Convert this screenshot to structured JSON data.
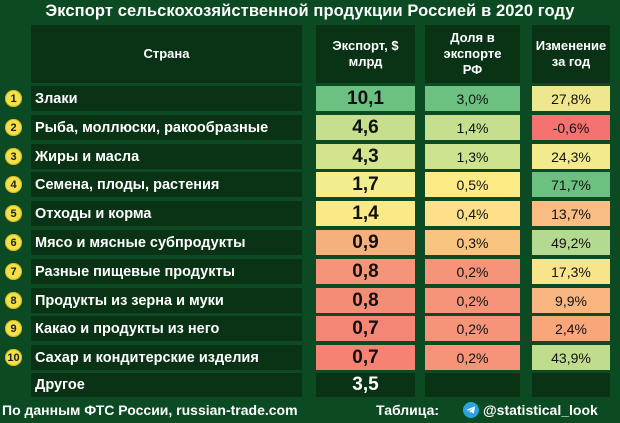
{
  "title": "Экспорт сельскохозяйственной продукции Россией в 2020 году",
  "headers": {
    "country": "Страна",
    "export": "Экспорт, $ млрд",
    "share": "Доля в экспорте РФ",
    "change": "Изменение за год"
  },
  "chart_data": {
    "type": "table",
    "columns": [
      "Страна",
      "Экспорт, $ млрд",
      "Доля в экспорте РФ",
      "Изменение за год"
    ],
    "rows": [
      {
        "rank": "1",
        "name": "Злаки",
        "export": "10,1",
        "share": "3,0%",
        "change": "27,8%"
      },
      {
        "rank": "2",
        "name": "Рыба, моллюски, ракообразные",
        "export": "4,6",
        "share": "1,4%",
        "change": "-0,6%"
      },
      {
        "rank": "3",
        "name": "Жиры и масла",
        "export": "4,3",
        "share": "1,3%",
        "change": "24,3%"
      },
      {
        "rank": "4",
        "name": "Семена, плоды, растения",
        "export": "1,7",
        "share": "0,5%",
        "change": "71,7%"
      },
      {
        "rank": "5",
        "name": "Отходы и корма",
        "export": "1,4",
        "share": "0,4%",
        "change": "13,7%"
      },
      {
        "rank": "6",
        "name": "Мясо и  мясные субпродукты",
        "export": "0,9",
        "share": "0,3%",
        "change": "49,2%"
      },
      {
        "rank": "7",
        "name": "Разные пищевые продукты",
        "export": "0,8",
        "share": "0,2%",
        "change": "17,3%"
      },
      {
        "rank": "8",
        "name": "Продукты из зерна и муки",
        "export": "0,8",
        "share": "0,2%",
        "change": "9,9%"
      },
      {
        "rank": "9",
        "name": "Какао и продукты из него",
        "export": "0,7",
        "share": "0,2%",
        "change": "2,4%"
      },
      {
        "rank": "10",
        "name": "Сахар и кондитерские изделия",
        "export": "0,7",
        "share": "0,2%",
        "change": "43,9%"
      }
    ],
    "other": {
      "name": "Другое",
      "export": "3,5"
    },
    "colors": {
      "export": [
        "#6cc080",
        "#c6df8e",
        "#d2e48e",
        "#f2ed8e",
        "#fae987",
        "#f6b07c",
        "#f59478",
        "#f48d75",
        "#f58574",
        "#f58272"
      ],
      "share": [
        "#6cc080",
        "#c6df8e",
        "#cee38e",
        "#fdeb88",
        "#fde089",
        "#f8c47f",
        "#f59478",
        "#f59478",
        "#f59478",
        "#f59478"
      ],
      "change": [
        "#eee78f",
        "#f47270",
        "#f2ea8d",
        "#6cc080",
        "#f9bc82",
        "#b3da90",
        "#f7e48b",
        "#f8b57f",
        "#f9a67b",
        "#c0dd8d"
      ]
    }
  },
  "footer": {
    "source": "По данным ФТС России, russian-trade.com",
    "table_label": "Таблица:",
    "handle": "@statistical_look"
  }
}
